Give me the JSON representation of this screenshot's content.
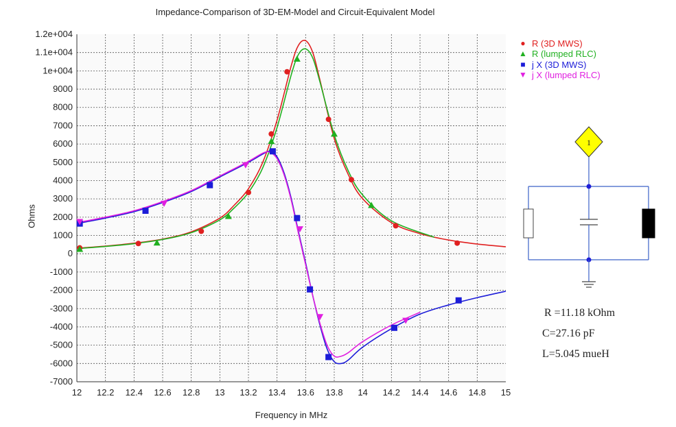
{
  "title": "Impedance-Comparison of 3D-EM-Model and Circuit-Equivalent Model",
  "xlabel": "Frequency in MHz",
  "ylabel": "Ohms",
  "legend": [
    {
      "label": "R (3D MWS)",
      "color": "#e02020",
      "marker": "circle"
    },
    {
      "label": "R (lumped RLC)",
      "color": "#20b020",
      "marker": "triangle-up"
    },
    {
      "label": "j X (3D MWS)",
      "color": "#1c1cd8",
      "marker": "square"
    },
    {
      "label": "j X (lumped RLC)",
      "color": "#e020e0",
      "marker": "triangle-down"
    }
  ],
  "circuit": {
    "port_label": "1",
    "R": "R =11.18 kOhm",
    "C": "C=27.16 pF",
    "L": "L=5.045 mueH"
  },
  "chart_data": {
    "type": "line",
    "title": "Impedance-Comparison of 3D-EM-Model and Circuit-Equivalent Model",
    "xlabel": "Frequency in MHz",
    "ylabel": "Ohms",
    "xlim": [
      12,
      15
    ],
    "ylim": [
      -7000,
      12000
    ],
    "xticks": [
      "12",
      "12.2",
      "12.4",
      "12.6",
      "12.8",
      "13",
      "13.2",
      "13.4",
      "13.6",
      "13.8",
      "14",
      "14.2",
      "14.4",
      "14.6",
      "14.8",
      "15"
    ],
    "yticks": [
      "1.2e+004",
      "1.1e+004",
      "1e+004",
      "9000",
      "8000",
      "7000",
      "6000",
      "5000",
      "4000",
      "3000",
      "2000",
      "1000",
      "0",
      "-1000",
      "-2000",
      "-3000",
      "-4000",
      "-5000",
      "-6000",
      "-7000"
    ],
    "grid": true,
    "legend_position": "right",
    "series": [
      {
        "name": "R (3D MWS)",
        "color": "#e02020",
        "marker": "circle",
        "x": [
          12,
          12.2,
          12.4,
          12.6,
          12.8,
          13,
          13.1,
          13.2,
          13.3,
          13.4,
          13.5,
          13.55,
          13.6,
          13.65,
          13.7,
          13.8,
          13.9,
          14,
          14.2,
          14.4,
          14.6,
          14.8,
          15
        ],
        "y": [
          300,
          420,
          580,
          800,
          1200,
          1950,
          2650,
          3550,
          5000,
          7300,
          10300,
          11400,
          11650,
          11000,
          9500,
          6300,
          4300,
          3000,
          1700,
          1100,
          750,
          530,
          380
        ],
        "markers_x": [
          12.02,
          12.43,
          12.87,
          13.2,
          13.36,
          13.47,
          13.76,
          13.92,
          14.23,
          14.66
        ],
        "markers_y": [
          320,
          560,
          1230,
          3350,
          6550,
          9950,
          7350,
          4050,
          1530,
          580
        ]
      },
      {
        "name": "R (lumped RLC)",
        "color": "#20b020",
        "marker": "triangle-up",
        "x": [
          12,
          12.2,
          12.4,
          12.6,
          12.8,
          13,
          13.1,
          13.2,
          13.3,
          13.4,
          13.5,
          13.55,
          13.6,
          13.65,
          13.7,
          13.8,
          13.9,
          14,
          14.2,
          14.5
        ],
        "y": [
          280,
          400,
          550,
          780,
          1150,
          1850,
          2500,
          3350,
          4700,
          6900,
          9800,
          10900,
          11200,
          10700,
          9400,
          6500,
          4500,
          3200,
          1800,
          900
        ],
        "markers_x": [
          12.02,
          12.56,
          13.06,
          13.36,
          13.54,
          13.8,
          14.06
        ],
        "markers_y": [
          250,
          600,
          2050,
          6150,
          10650,
          6550,
          2650
        ]
      },
      {
        "name": "j X (3D MWS)",
        "color": "#1c1cd8",
        "marker": "square",
        "x": [
          12,
          12.2,
          12.4,
          12.6,
          12.8,
          13,
          13.2,
          13.3,
          13.35,
          13.4,
          13.45,
          13.5,
          13.55,
          13.6,
          13.65,
          13.7,
          13.75,
          13.8,
          13.85,
          13.9,
          14,
          14.2,
          14.4,
          14.6,
          14.8,
          15
        ],
        "y": [
          1650,
          1950,
          2300,
          2800,
          3400,
          4200,
          5000,
          5450,
          5600,
          5300,
          4400,
          3000,
          1200,
          -500,
          -2300,
          -3900,
          -5200,
          -5900,
          -6000,
          -5800,
          -5100,
          -4100,
          -3300,
          -2800,
          -2400,
          -2050
        ],
        "markers_x": [
          12.02,
          12.48,
          12.93,
          13.37,
          13.54,
          13.63,
          13.76,
          14.22,
          14.67
        ],
        "markers_y": [
          1650,
          2350,
          3750,
          5600,
          1950,
          -1950,
          -5650,
          -4050,
          -2550
        ]
      },
      {
        "name": "j X (lumped RLC)",
        "color": "#e020e0",
        "marker": "triangle-down",
        "x": [
          12,
          12.2,
          12.4,
          12.6,
          12.8,
          13,
          13.2,
          13.3,
          13.35,
          13.4,
          13.45,
          13.5,
          13.55,
          13.6,
          13.65,
          13.7,
          13.75,
          13.8,
          13.85,
          13.9,
          14,
          14.2,
          14.4
        ],
        "y": [
          1700,
          2000,
          2350,
          2850,
          3450,
          4250,
          5050,
          5500,
          5550,
          5200,
          4300,
          2900,
          1100,
          -600,
          -2300,
          -3800,
          -5000,
          -5600,
          -5600,
          -5400,
          -4800,
          -3900,
          -3200
        ],
        "markers_x": [
          12.02,
          12.61,
          13.18,
          13.56,
          13.7,
          14.3
        ],
        "markers_y": [
          1750,
          2750,
          4850,
          1350,
          -3450,
          -3650
        ]
      }
    ]
  }
}
